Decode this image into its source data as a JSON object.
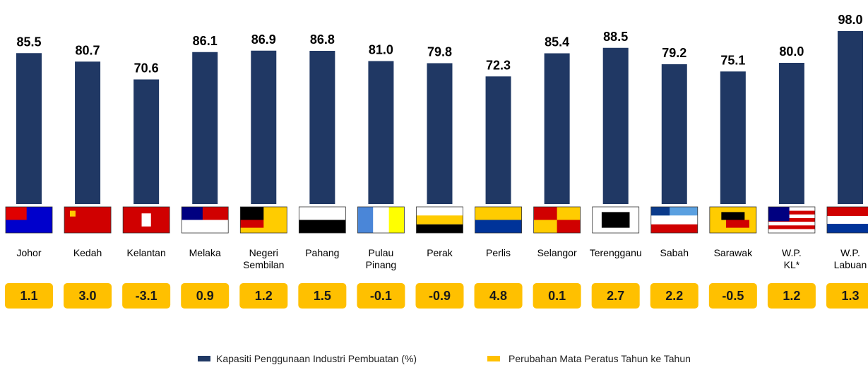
{
  "chart_data": {
    "type": "bar",
    "categories": [
      "Johor",
      "Kedah",
      "Kelantan",
      "Melaka",
      "Negeri\nSembilan",
      "Pahang",
      "Pulau\nPinang",
      "Perak",
      "Perlis",
      "Selangor",
      "Terengganu",
      "Sabah",
      "Sarawak",
      "W.P.\nKL*",
      "W.P.\nLabuan"
    ],
    "ylim": [
      0,
      100
    ],
    "series": [
      {
        "name": "Kapasiti Penggunaan Industri Pembuatan (%)",
        "color": "#203864",
        "values": [
          85.5,
          80.7,
          70.6,
          86.1,
          86.9,
          86.8,
          81.0,
          79.8,
          72.3,
          85.4,
          88.5,
          79.2,
          75.1,
          80.0,
          98.0
        ],
        "value_labels": [
          "85.5",
          "80.7",
          "70.6",
          "86.1",
          "86.9",
          "86.8",
          "81.0",
          "79.8",
          "72.3",
          "85.4",
          "88.5",
          "79.2",
          "75.1",
          "80.0",
          "98.0"
        ]
      },
      {
        "name": "Perubahan Mata Peratus Tahun ke Tahun",
        "color": "#FFC000",
        "values": [
          1.1,
          3.0,
          -3.1,
          0.9,
          1.2,
          1.5,
          -0.1,
          -0.9,
          4.8,
          0.1,
          2.7,
          2.2,
          -0.5,
          1.2,
          1.3
        ],
        "value_labels": [
          "1.1",
          "3.0",
          "-3.1",
          "0.9",
          "1.2",
          "1.5",
          "-0.1",
          "-0.9",
          "4.8",
          "0.1",
          "2.7",
          "2.2",
          "-0.5",
          "1.2",
          "1.3"
        ]
      }
    ]
  }
}
